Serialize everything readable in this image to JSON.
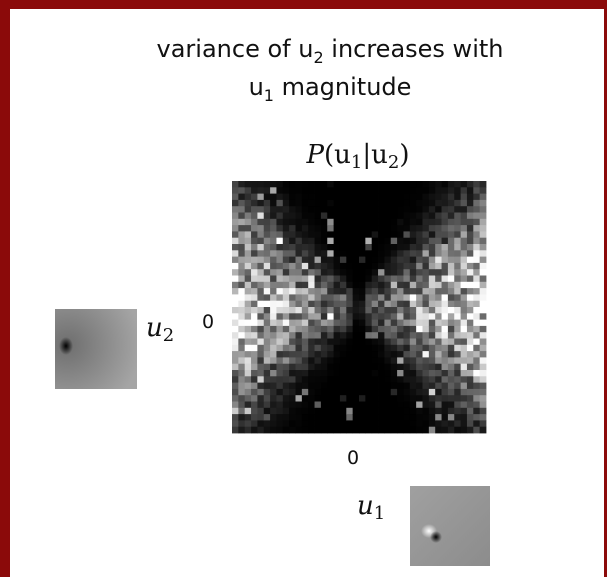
{
  "title": {
    "line1": {
      "text": "variance of u",
      "sub": "2",
      "rest": " increases with"
    },
    "line2": {
      "text": "u",
      "sub": "1",
      "rest": " magnitude"
    }
  },
  "plot": {
    "label": {
      "p": "P",
      "open": "(u",
      "a": "1",
      "bar": "|u",
      "b": "2",
      "close": ")"
    },
    "y_zero": "0",
    "x_zero": "0"
  },
  "filters": {
    "u2": {
      "name": "u",
      "sub": "2"
    },
    "u1": {
      "name": "u",
      "sub": "1"
    }
  }
}
